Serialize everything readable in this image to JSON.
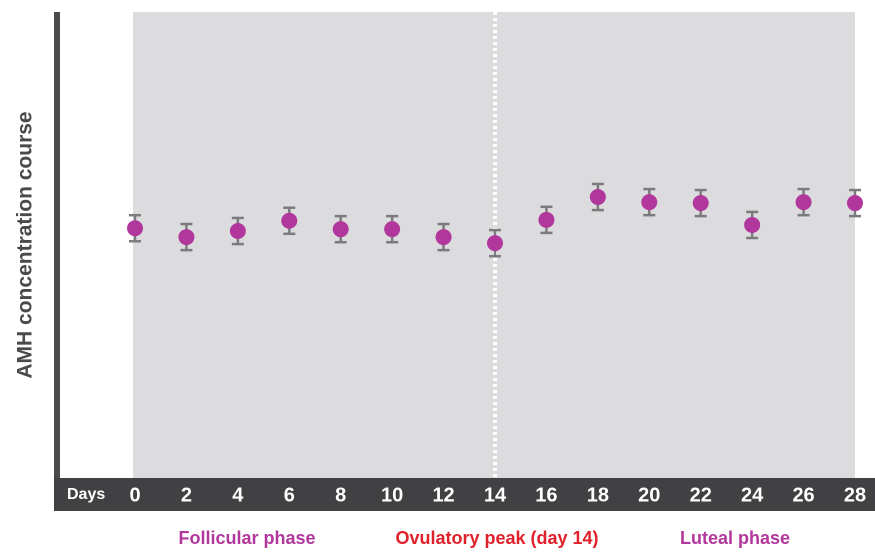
{
  "chart_data": {
    "type": "errorbar-scatter",
    "y_label": "AMH concentration course",
    "x_label": "Days",
    "x": [
      0,
      2,
      4,
      6,
      8,
      10,
      12,
      14,
      16,
      18,
      20,
      22,
      24,
      26,
      28
    ],
    "values": [
      53.6,
      51.7,
      53.0,
      55.2,
      53.4,
      53.4,
      51.7,
      50.4,
      55.4,
      60.3,
      59.2,
      59.0,
      54.3,
      59.2,
      59.0
    ],
    "errors": [
      2.8,
      2.8,
      2.8,
      2.8,
      2.8,
      2.8,
      2.8,
      2.8,
      2.8,
      2.8,
      2.8,
      2.8,
      2.8,
      2.8,
      2.8
    ],
    "color": "#b2379c",
    "error_color": "#7b7b7d",
    "xlim": [
      0,
      28
    ],
    "xticks": [
      0,
      2,
      4,
      6,
      8,
      10,
      12,
      14,
      16,
      18,
      20,
      22,
      24,
      26,
      28
    ],
    "ylim": [
      0,
      100
    ],
    "vline": 14,
    "annotations": [
      {
        "text": "Follicular phase",
        "color": "#b2379c"
      },
      {
        "text": "Ovulatory peak (day 14)",
        "color": "#e0202a"
      },
      {
        "text": "Luteal phase",
        "color": "#b2379c"
      }
    ]
  }
}
